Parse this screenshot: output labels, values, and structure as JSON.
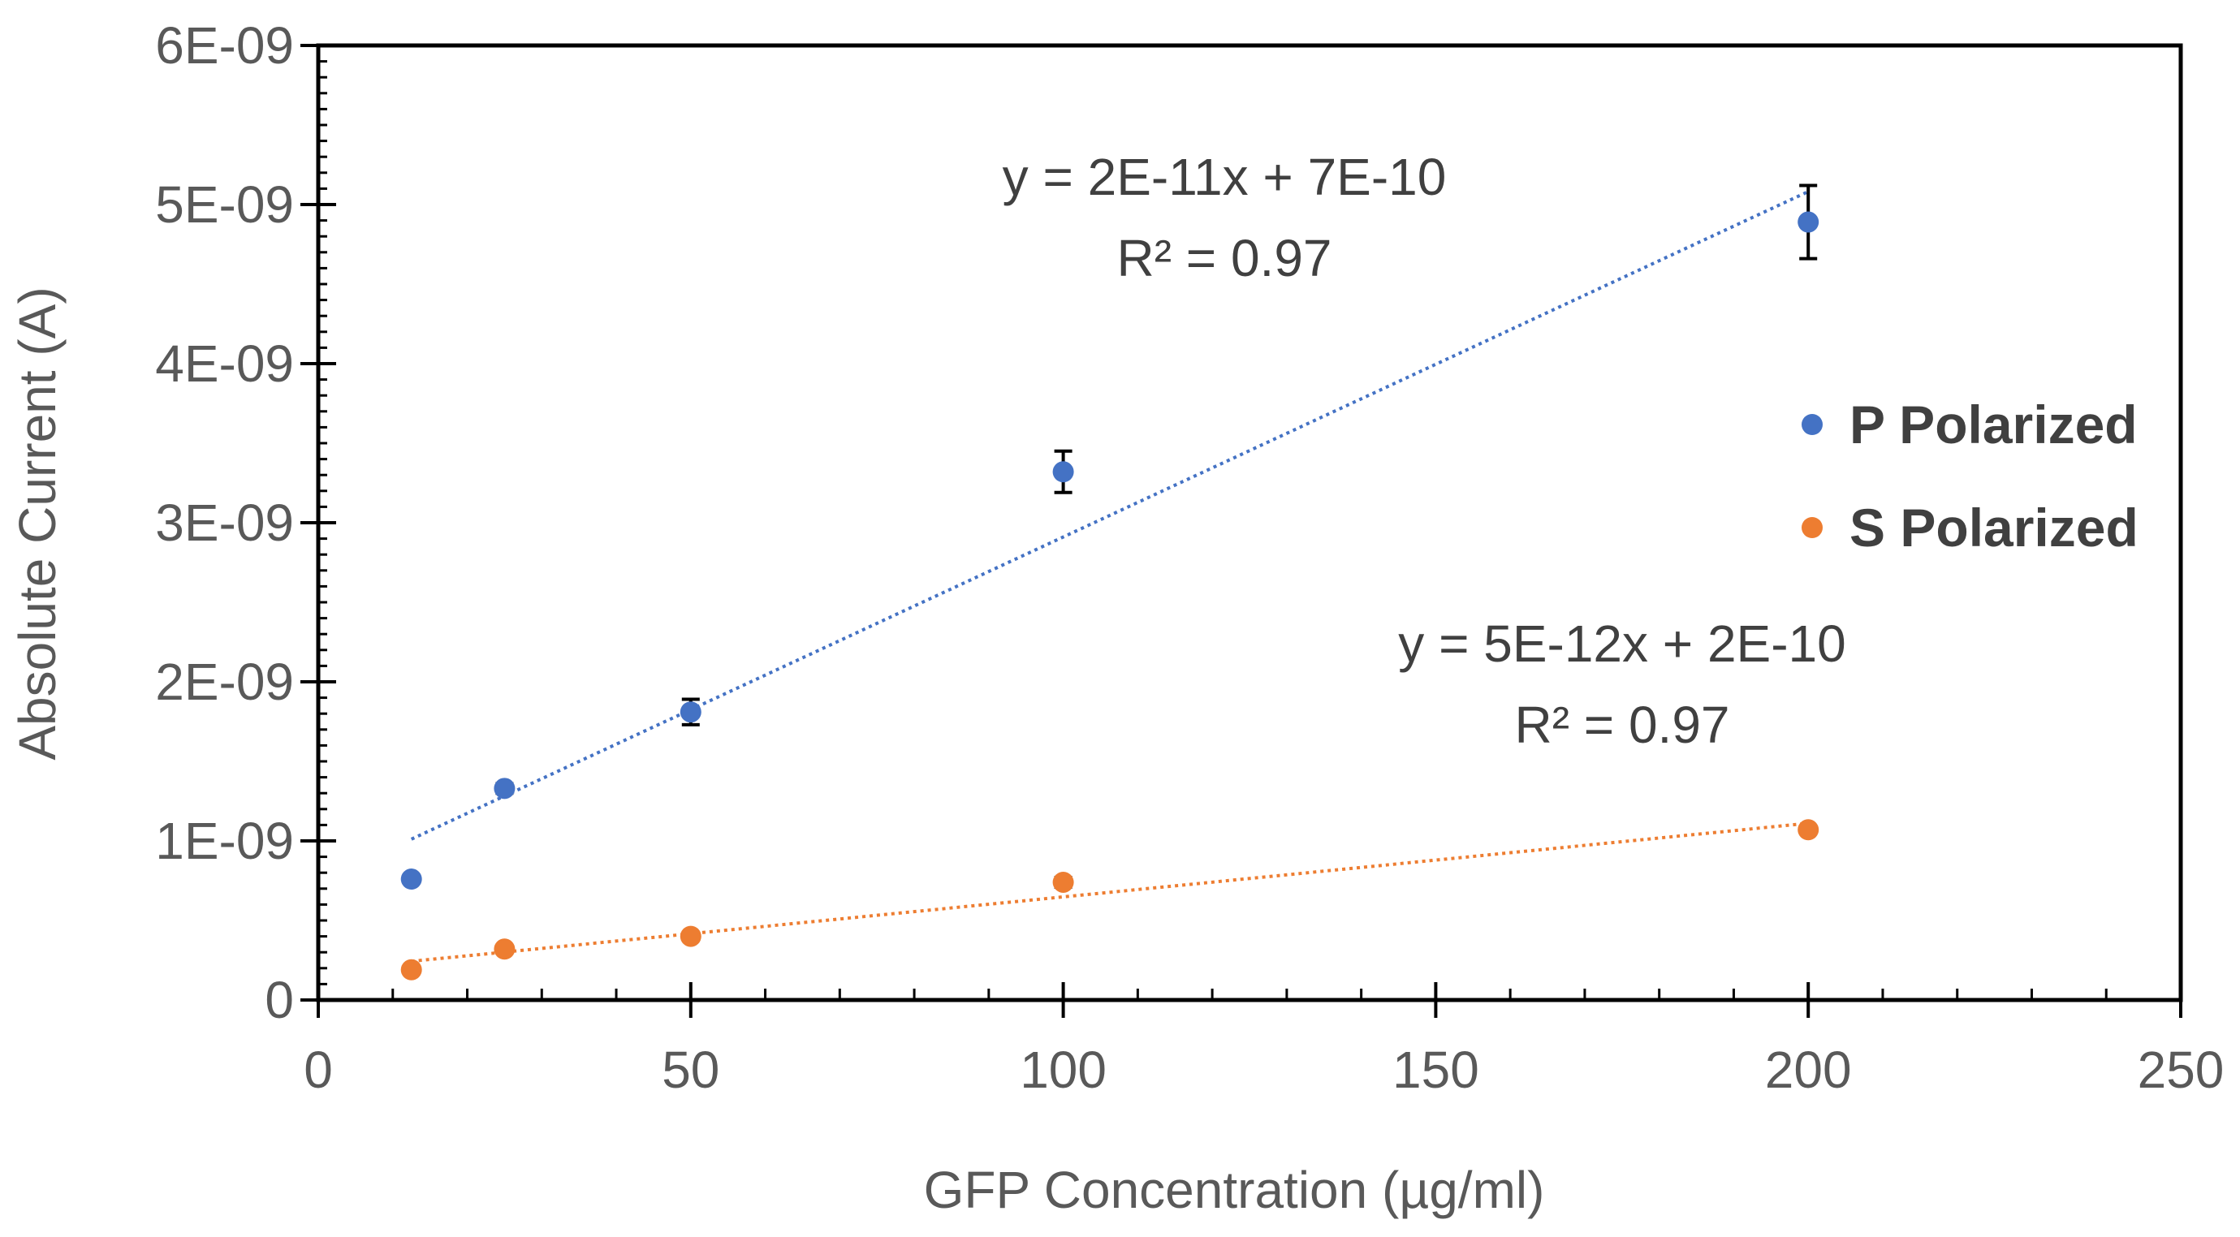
{
  "chart_data": {
    "type": "scatter",
    "xlabel": "GFP Concentration (µg/ml)",
    "ylabel": "Absolute Current (A)",
    "xlim": [
      0,
      250
    ],
    "ylim": [
      0,
      6e-09
    ],
    "x_ticks": [
      0,
      50,
      100,
      150,
      200,
      250
    ],
    "x_tick_labels": [
      "0",
      "50",
      "100",
      "150",
      "200",
      "250"
    ],
    "y_ticks": [
      0,
      1e-09,
      2e-09,
      3e-09,
      4e-09,
      5e-09,
      6e-09
    ],
    "y_tick_labels": [
      "0",
      "1E-09",
      "2E-09",
      "3E-09",
      "4E-09",
      "5E-09",
      "6E-09"
    ],
    "grid": false,
    "legend_position": "right",
    "series": [
      {
        "name": "P Polarized",
        "color": "#4472C4",
        "x": [
          12.5,
          25,
          50,
          100,
          200
        ],
        "y": [
          7.6e-10,
          1.33e-09,
          1.81e-09,
          3.32e-09,
          4.89e-09
        ],
        "error": [
          0,
          3e-11,
          8e-11,
          1.3e-10,
          2.3e-10
        ],
        "trendline": {
          "type": "linear",
          "x_range": [
            12.5,
            200
          ],
          "equation": "y = 2E-11x + 7E-10",
          "r_squared": "R² = 0.97"
        }
      },
      {
        "name": "S Polarized",
        "color": "#ED7D31",
        "x": [
          12.5,
          25,
          50,
          100,
          200
        ],
        "y": [
          1.9e-10,
          3.2e-10,
          4e-10,
          7.4e-10,
          1.07e-09
        ],
        "error": [
          0,
          0,
          0,
          3e-11,
          0
        ],
        "trendline": {
          "type": "linear",
          "x_range": [
            12.5,
            200
          ],
          "equation": "y = 5E-12x + 2E-10",
          "r_squared": "R² = 0.97"
        }
      }
    ]
  }
}
